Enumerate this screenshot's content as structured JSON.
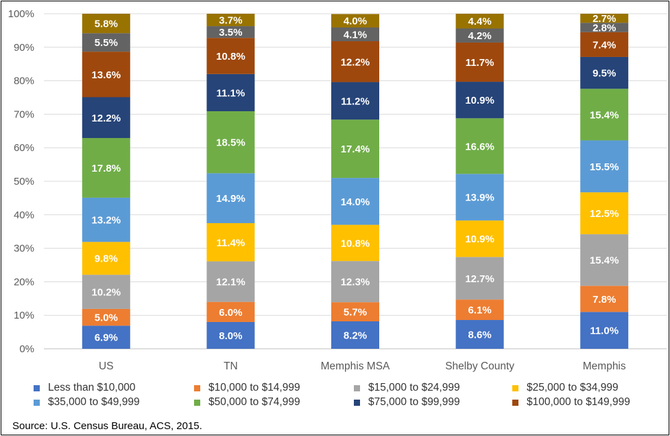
{
  "chart_data": {
    "type": "bar",
    "stacked": true,
    "categories": [
      "US",
      "TN",
      "Memphis MSA",
      "Shelby County",
      "Memphis"
    ],
    "series": [
      {
        "name": "Less than $10,000",
        "color": "#4472C4",
        "values": [
          6.9,
          8.0,
          8.2,
          8.6,
          11.0
        ],
        "labels": [
          "6.9%",
          "8.0%",
          "8.2%",
          "8.6%",
          "11.0%"
        ]
      },
      {
        "name": "$10,000 to $14,999",
        "color": "#ED7D31",
        "values": [
          5.0,
          6.0,
          5.7,
          6.1,
          7.8
        ],
        "labels": [
          "5.0%",
          "6.0%",
          "5.7%",
          "6.1%",
          "7.8%"
        ]
      },
      {
        "name": "$15,000 to $24,999",
        "color": "#A5A5A5",
        "values": [
          10.2,
          12.1,
          12.3,
          12.7,
          15.4
        ],
        "labels": [
          "10.2%",
          "12.1%",
          "12.3%",
          "12.7%",
          "15.4%"
        ]
      },
      {
        "name": "$25,000 to $34,999",
        "color": "#FFC000",
        "values": [
          9.8,
          11.4,
          10.8,
          10.9,
          12.5
        ],
        "labels": [
          "9.8%",
          "11.4%",
          "10.8%",
          "10.9%",
          "12.5%"
        ]
      },
      {
        "name": "$35,000 to $49,999",
        "color": "#5B9BD5",
        "values": [
          13.2,
          14.9,
          14.0,
          13.9,
          15.5
        ],
        "labels": [
          "13.2%",
          "14.9%",
          "14.0%",
          "13.9%",
          "15.5%"
        ]
      },
      {
        "name": "$50,000 to $74,999",
        "color": "#70AD47",
        "values": [
          17.8,
          18.5,
          17.4,
          16.6,
          15.4
        ],
        "labels": [
          "17.8%",
          "18.5%",
          "17.4%",
          "16.6%",
          "15.4%"
        ]
      },
      {
        "name": "$75,000 to $99,999",
        "color": "#264478",
        "values": [
          12.2,
          11.1,
          11.2,
          10.9,
          9.5
        ],
        "labels": [
          "12.2%",
          "11.1%",
          "11.2%",
          "10.9%",
          "9.5%"
        ]
      },
      {
        "name": "$100,000 to $149,999",
        "color": "#9E480E",
        "values": [
          13.6,
          10.8,
          12.2,
          11.7,
          7.4
        ],
        "labels": [
          "13.6%",
          "10.8%",
          "12.2%",
          "11.7%",
          "7.4%"
        ]
      },
      {
        "name": "",
        "color": "#636363",
        "values": [
          5.5,
          3.5,
          4.1,
          4.2,
          2.8
        ],
        "labels": [
          "5.5%",
          "3.5%",
          "4.1%",
          "4.2%",
          "2.8%"
        ]
      },
      {
        "name": "",
        "color": "#997300",
        "values": [
          5.8,
          3.7,
          4.0,
          4.4,
          2.7
        ],
        "labels": [
          "5.8%",
          "3.7%",
          "4.0%",
          "4.4%",
          "2.7%"
        ]
      }
    ],
    "yticks": [
      "0%",
      "10%",
      "20%",
      "30%",
      "40%",
      "50%",
      "60%",
      "70%",
      "80%",
      "90%",
      "100%"
    ],
    "ylim": [
      0,
      100
    ],
    "title": "",
    "xlabel": "",
    "ylabel": "",
    "grid": true,
    "legend": "bottom",
    "label_color": "#ffffff",
    "source": "Source:  U.S. Census Bureau, ACS, 2015."
  }
}
